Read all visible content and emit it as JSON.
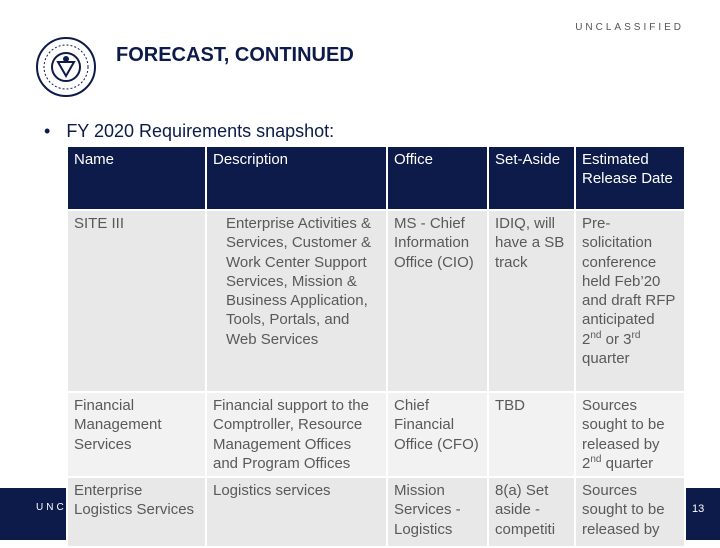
{
  "header": {
    "classification": "UNCLASSIFIED",
    "title": "FORECAST, CONTINUED"
  },
  "bullet": "FY 2020 Requirements snapshot:",
  "table": {
    "columns": [
      "Name",
      "Description",
      "Office",
      "Set-Aside",
      "Estimated Release Date"
    ],
    "rows": [
      [
        "SITE III",
        "Enterprise Activities & Services, Customer & Work Center Support Services, Mission & Business Application, Tools, Portals, and Web Services",
        "MS - Chief Information Office (CIO)",
        "IDIQ, will have a SB track",
        [
          "Pre-solicitation conference held Feb’20 and draft RFP anticipated 2",
          "nd",
          " or 3",
          "rd",
          " quarter"
        ]
      ],
      [
        "Financial Management Services",
        "Financial support to the Comptroller, Resource Management Offices and Program Offices",
        "Chief Financial Office (CFO)",
        "TBD",
        [
          "Sources sought to be released by 2",
          "nd",
          " quarter"
        ]
      ],
      [
        "Enterprise Logistics Services",
        "Logistics services",
        "Mission Services - Logistics",
        "8(a) Set aside - competiti",
        "Sources sought to be released by"
      ]
    ]
  },
  "footer": {
    "classification": "UNCL",
    "page": "13"
  }
}
